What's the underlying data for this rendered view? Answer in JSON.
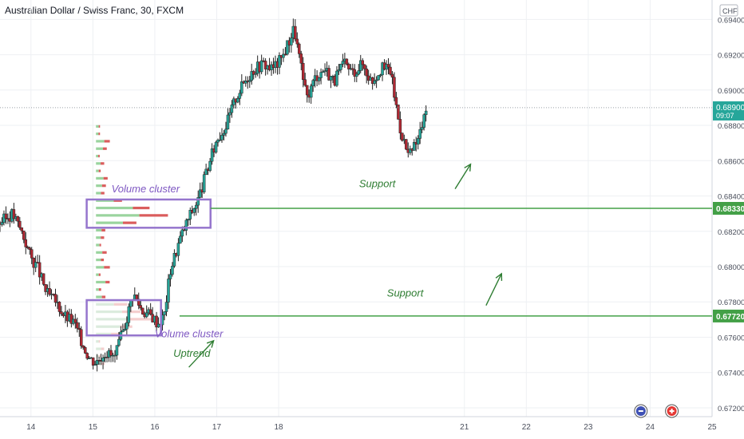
{
  "header": {
    "title": "Australian Dollar / Swiss Franc, 30, FXCM"
  },
  "axis": {
    "currency": "CHF"
  },
  "chart_data": {
    "type": "candlestick",
    "title": "Australian Dollar / Swiss Franc, 30, FXCM",
    "ylim": [
      0.6715,
      0.6951
    ],
    "xlim": [
      13.5,
      25.0
    ],
    "y_ticks": [
      {
        "value": 0.672,
        "label": "0.67200"
      },
      {
        "value": 0.674,
        "label": "0.67400"
      },
      {
        "value": 0.676,
        "label": "0.67600"
      },
      {
        "value": 0.678,
        "label": "0.67800"
      },
      {
        "value": 0.68,
        "label": "0.68000"
      },
      {
        "value": 0.682,
        "label": "0.68200"
      },
      {
        "value": 0.684,
        "label": "0.68400"
      },
      {
        "value": 0.686,
        "label": "0.68600"
      },
      {
        "value": 0.688,
        "label": "0.68800"
      },
      {
        "value": 0.69,
        "label": "0.69000"
      },
      {
        "value": 0.692,
        "label": "0.69200"
      },
      {
        "value": 0.694,
        "label": "0.69400"
      }
    ],
    "x_ticks": [
      {
        "value": 14,
        "label": "14"
      },
      {
        "value": 15,
        "label": "15"
      },
      {
        "value": 16,
        "label": "16"
      },
      {
        "value": 17,
        "label": "17"
      },
      {
        "value": 18,
        "label": "18"
      },
      {
        "value": 21,
        "label": "21"
      },
      {
        "value": 22,
        "label": "22"
      },
      {
        "value": 23,
        "label": "23"
      },
      {
        "value": 24,
        "label": "24"
      },
      {
        "value": 25,
        "label": "25"
      }
    ],
    "price_path": [
      [
        13.5,
        0.6825
      ],
      [
        13.7,
        0.683
      ],
      [
        13.85,
        0.682
      ],
      [
        14.0,
        0.6805
      ],
      [
        14.1,
        0.68
      ],
      [
        14.25,
        0.6785
      ],
      [
        14.4,
        0.678
      ],
      [
        14.55,
        0.6772
      ],
      [
        14.7,
        0.6768
      ],
      [
        14.85,
        0.6755
      ],
      [
        14.95,
        0.6748
      ],
      [
        15.05,
        0.6746
      ],
      [
        15.2,
        0.6752
      ],
      [
        15.35,
        0.6748
      ],
      [
        15.5,
        0.6765
      ],
      [
        15.65,
        0.6785
      ],
      [
        15.8,
        0.6775
      ],
      [
        15.95,
        0.6772
      ],
      [
        16.05,
        0.6768
      ],
      [
        16.15,
        0.6772
      ],
      [
        16.25,
        0.6798
      ],
      [
        16.4,
        0.6815
      ],
      [
        16.55,
        0.6828
      ],
      [
        16.7,
        0.6838
      ],
      [
        16.85,
        0.6855
      ],
      [
        17.0,
        0.6872
      ],
      [
        17.15,
        0.688
      ],
      [
        17.3,
        0.6895
      ],
      [
        17.45,
        0.6905
      ],
      [
        17.6,
        0.6912
      ],
      [
        17.75,
        0.6915
      ],
      [
        17.9,
        0.6912
      ],
      [
        18.05,
        0.6918
      ],
      [
        18.25,
        0.6935
      ],
      [
        18.45,
        0.6895
      ],
      [
        18.6,
        0.6908
      ],
      [
        18.75,
        0.6912
      ],
      [
        18.9,
        0.6905
      ],
      [
        19.05,
        0.6915
      ],
      [
        19.2,
        0.691
      ],
      [
        19.35,
        0.6915
      ],
      [
        19.5,
        0.6905
      ],
      [
        19.65,
        0.6912
      ],
      [
        19.8,
        0.6912
      ],
      [
        19.95,
        0.688
      ],
      [
        20.1,
        0.6862
      ],
      [
        20.25,
        0.6872
      ],
      [
        20.4,
        0.689
      ]
    ],
    "current_price": {
      "value": 0.689,
      "label": "0.68900",
      "countdown": "09:07"
    },
    "annotations": [
      {
        "text": "Volume cluster",
        "x": 15.3,
        "y": 0.6842
      },
      {
        "text": "Volume cluster",
        "x": 16.0,
        "y": 0.676
      },
      {
        "text": "Uptrend",
        "x": 16.3,
        "y": 0.6749
      },
      {
        "text": "Support",
        "x": 19.3,
        "y": 0.6845
      },
      {
        "text": "Support",
        "x": 19.75,
        "y": 0.6783
      }
    ],
    "support_levels": [
      {
        "value": 0.6833,
        "label": "0.68330",
        "x_start": 16.9
      },
      {
        "value": 0.6772,
        "label": "0.67720",
        "x_start": 16.4
      }
    ],
    "volume_clusters": [
      {
        "x_start": 14.9,
        "x_end": 16.9,
        "y_low": 0.6822,
        "y_high": 0.6838
      },
      {
        "x_start": 14.9,
        "x_end": 16.1,
        "y_low": 0.6761,
        "y_high": 0.6781
      }
    ],
    "colors": {
      "up": "#26a69a",
      "down": "#b22833",
      "support": "#43a047",
      "cluster": "#9575cd",
      "label_text": "#ffffff"
    }
  }
}
